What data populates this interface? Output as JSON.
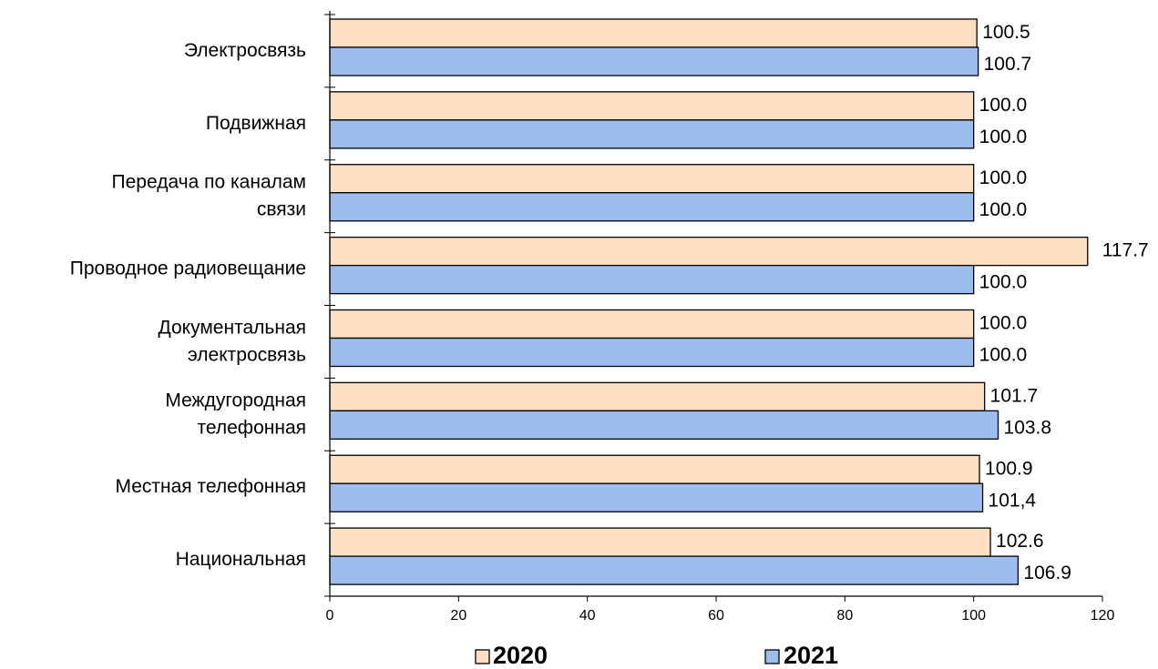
{
  "chart_data": {
    "type": "bar",
    "orientation": "horizontal",
    "categories": [
      [
        "Электросвязь"
      ],
      [
        "Подвижная"
      ],
      [
        "Передача по каналам",
        "связи"
      ],
      [
        "Проводное радиовещание"
      ],
      [
        "Документальная",
        "электросвязь"
      ],
      [
        "Междугородная",
        "телефонная"
      ],
      [
        "Местная телефонная"
      ],
      [
        "Национальная"
      ]
    ],
    "series": [
      {
        "name": "2020",
        "color": "#fde0c4",
        "values": [
          100.5,
          100.0,
          100.0,
          117.7,
          100.0,
          101.7,
          100.9,
          102.6
        ],
        "labels": [
          "100.5",
          "100.0",
          "100.0",
          "117.7",
          "100.0",
          "101.7",
          "100.9",
          "102.6"
        ]
      },
      {
        "name": "2021",
        "color": "#9dbdee",
        "values": [
          100.7,
          100.0,
          100.0,
          100.0,
          100.0,
          103.8,
          101.4,
          106.9
        ],
        "labels": [
          "100.7",
          "100.0",
          "100.0",
          "100.0",
          "100.0",
          "103.8",
          "101,4",
          "106.9"
        ]
      }
    ],
    "xlim": [
      0,
      120
    ],
    "xticks": [
      "0",
      "20",
      "40",
      "60",
      "80",
      "100",
      "120"
    ],
    "title": "",
    "xlabel": "",
    "ylabel": "",
    "grid": false,
    "legend": "bottom"
  }
}
